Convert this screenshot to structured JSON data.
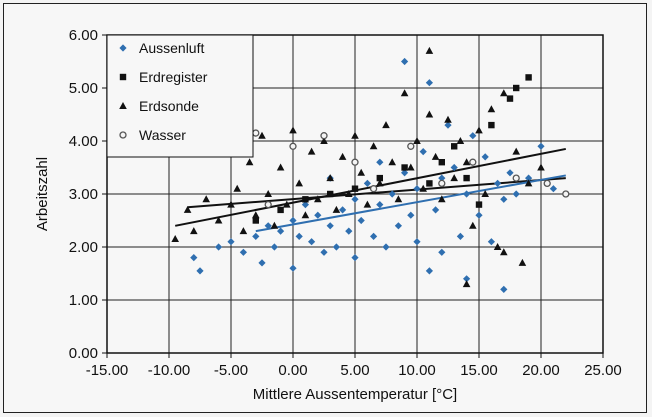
{
  "chart_data": {
    "type": "scatter",
    "xlabel": "Mittlere Aussentemperatur [°C]",
    "ylabel": "Arbeitszahl",
    "xlim": [
      -15,
      25
    ],
    "ylim": [
      0,
      6
    ],
    "x_ticks": [
      "-15.00",
      "-10.00",
      "-5.00",
      "0.00",
      "5.00",
      "10.00",
      "15.00",
      "20.00",
      "25.00"
    ],
    "y_ticks": [
      "0.00",
      "1.00",
      "2.00",
      "3.00",
      "4.00",
      "5.00",
      "6.00"
    ],
    "grid": true,
    "legend_position": "top-left",
    "series": [
      {
        "name": "Aussenluft",
        "marker": "diamond",
        "color": "#2f6fb0",
        "points": [
          [
            -8,
            1.8
          ],
          [
            -7.5,
            1.55
          ],
          [
            -6,
            2.0
          ],
          [
            -5,
            2.1
          ],
          [
            -4,
            1.9
          ],
          [
            -3,
            2.2
          ],
          [
            -2.5,
            1.7
          ],
          [
            -2,
            2.4
          ],
          [
            -1.5,
            2.0
          ],
          [
            -1,
            2.3
          ],
          [
            0,
            1.6
          ],
          [
            0,
            2.5
          ],
          [
            0.5,
            2.2
          ],
          [
            1,
            2.8
          ],
          [
            1.5,
            2.1
          ],
          [
            2,
            2.6
          ],
          [
            2.5,
            1.9
          ],
          [
            3,
            2.4
          ],
          [
            3,
            3.3
          ],
          [
            3.5,
            2.0
          ],
          [
            4,
            2.7
          ],
          [
            4.5,
            2.3
          ],
          [
            5,
            2.9
          ],
          [
            5,
            1.8
          ],
          [
            5.5,
            2.5
          ],
          [
            6,
            3.2
          ],
          [
            6.5,
            2.2
          ],
          [
            7,
            2.8
          ],
          [
            7,
            3.6
          ],
          [
            7.5,
            2.0
          ],
          [
            8,
            3.0
          ],
          [
            8.5,
            2.4
          ],
          [
            9,
            5.5
          ],
          [
            9,
            3.4
          ],
          [
            9.5,
            2.6
          ],
          [
            10,
            3.1
          ],
          [
            10,
            2.1
          ],
          [
            10.5,
            3.8
          ],
          [
            11,
            5.1
          ],
          [
            11,
            1.55
          ],
          [
            11.5,
            2.7
          ],
          [
            12,
            3.3
          ],
          [
            12,
            1.9
          ],
          [
            12.5,
            4.3
          ],
          [
            13,
            3.5
          ],
          [
            13.5,
            2.2
          ],
          [
            14,
            1.4
          ],
          [
            14,
            3.0
          ],
          [
            14.5,
            4.1
          ],
          [
            15,
            2.6
          ],
          [
            15.5,
            3.7
          ],
          [
            16,
            2.1
          ],
          [
            16.5,
            3.2
          ],
          [
            17,
            1.2
          ],
          [
            17,
            2.9
          ],
          [
            17.5,
            3.4
          ],
          [
            18,
            3.0
          ],
          [
            19,
            3.3
          ],
          [
            20,
            3.9
          ],
          [
            21,
            3.1
          ]
        ]
      },
      {
        "name": "Erdregister",
        "marker": "square",
        "color": "#111111",
        "points": [
          [
            -3,
            2.5
          ],
          [
            -1,
            2.7
          ],
          [
            1,
            2.9
          ],
          [
            3,
            3.0
          ],
          [
            5,
            3.1
          ],
          [
            7,
            3.3
          ],
          [
            9,
            3.5
          ],
          [
            11,
            3.2
          ],
          [
            12,
            3.6
          ],
          [
            13,
            3.9
          ],
          [
            14,
            3.3
          ],
          [
            15,
            2.8
          ],
          [
            16,
            4.3
          ],
          [
            17.5,
            4.8
          ],
          [
            18,
            5.0
          ],
          [
            19,
            5.2
          ]
        ]
      },
      {
        "name": "Erdsonde",
        "marker": "triangle",
        "color": "#111111",
        "points": [
          [
            -9.5,
            2.15
          ],
          [
            -8.5,
            2.7
          ],
          [
            -8,
            2.3
          ],
          [
            -7,
            2.9
          ],
          [
            -6,
            2.5
          ],
          [
            -5,
            2.8
          ],
          [
            -4.5,
            3.1
          ],
          [
            -4,
            2.3
          ],
          [
            -3.5,
            3.6
          ],
          [
            -3,
            2.6
          ],
          [
            -2.5,
            4.1
          ],
          [
            -2,
            3.0
          ],
          [
            -1.5,
            2.4
          ],
          [
            -1,
            3.5
          ],
          [
            -0.5,
            2.8
          ],
          [
            0,
            4.2
          ],
          [
            0.5,
            3.2
          ],
          [
            1,
            2.6
          ],
          [
            1.5,
            3.8
          ],
          [
            2,
            2.9
          ],
          [
            2.5,
            4.0
          ],
          [
            3,
            3.3
          ],
          [
            3.5,
            2.7
          ],
          [
            4,
            3.7
          ],
          [
            4.5,
            3.0
          ],
          [
            5,
            4.1
          ],
          [
            5.5,
            3.4
          ],
          [
            6,
            2.8
          ],
          [
            6.5,
            3.9
          ],
          [
            7,
            3.2
          ],
          [
            7.5,
            4.3
          ],
          [
            8,
            3.6
          ],
          [
            8.5,
            2.9
          ],
          [
            9,
            4.9
          ],
          [
            9.5,
            3.5
          ],
          [
            10,
            4.0
          ],
          [
            10.5,
            3.1
          ],
          [
            11,
            5.7
          ],
          [
            11,
            4.5
          ],
          [
            11.5,
            3.7
          ],
          [
            12,
            2.9
          ],
          [
            12.5,
            4.4
          ],
          [
            13,
            3.3
          ],
          [
            13.5,
            4.0
          ],
          [
            14,
            1.3
          ],
          [
            14,
            3.6
          ],
          [
            14.5,
            2.4
          ],
          [
            15,
            4.2
          ],
          [
            15.5,
            3.0
          ],
          [
            16,
            4.6
          ],
          [
            16.5,
            2.0
          ],
          [
            17,
            4.9
          ],
          [
            17,
            1.9
          ],
          [
            18,
            3.8
          ],
          [
            18.5,
            1.7
          ],
          [
            19,
            3.2
          ],
          [
            20,
            3.5
          ]
        ]
      },
      {
        "name": "Wasser",
        "marker": "circle",
        "color": "#555555",
        "points": [
          [
            -3,
            4.15
          ],
          [
            -2,
            2.8
          ],
          [
            0,
            3.9
          ],
          [
            2.5,
            4.1
          ],
          [
            5,
            3.6
          ],
          [
            6.5,
            3.1
          ],
          [
            9.5,
            3.9
          ],
          [
            12,
            3.2
          ],
          [
            14.5,
            3.6
          ],
          [
            18,
            3.3
          ],
          [
            20.5,
            3.2
          ],
          [
            22,
            3.0
          ]
        ]
      }
    ],
    "trend_lines": [
      {
        "color": "#111111",
        "from": [
          -9.5,
          2.4
        ],
        "to": [
          22,
          3.85
        ]
      },
      {
        "color": "#111111",
        "from": [
          -8.5,
          2.75
        ],
        "to": [
          22,
          3.3
        ]
      },
      {
        "color": "#2f6fb0",
        "from": [
          -3,
          2.3
        ],
        "to": [
          22,
          3.35
        ]
      }
    ]
  }
}
